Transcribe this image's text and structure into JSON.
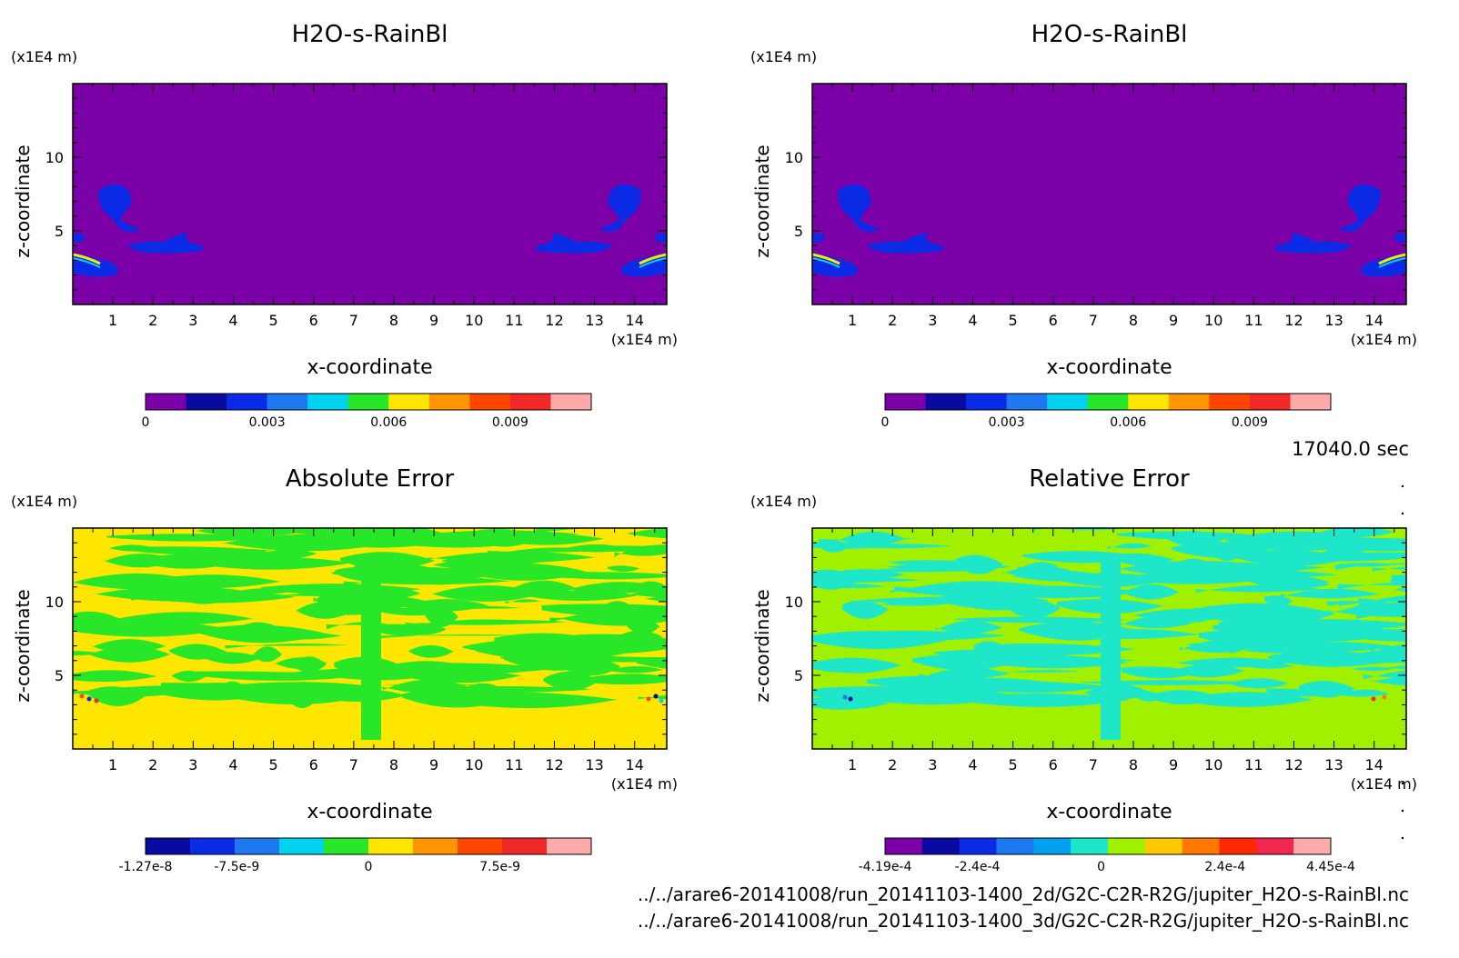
{
  "time_label": "17040.0 sec",
  "file_paths": [
    "../../arare6-20141008/run_20141103-1400_2d/G2C-C2R-R2G/jupiter_H2O-s-RainBl.nc",
    "../../arare6-20141008/run_20141103-1400_3d/G2C-C2R-R2G/jupiter_H2O-s-RainBl.nc"
  ],
  "chart_data": [
    {
      "type": "heatmap",
      "title": "H2O-s-RainBl",
      "xlabel": "x-coordinate",
      "ylabel": "z-coordinate",
      "x_unit": "(x1E4 m)",
      "y_unit": "(x1E4 m)",
      "xlim": [
        0,
        14.8
      ],
      "ylim": [
        0,
        15
      ],
      "x_ticks": [
        1,
        2,
        3,
        4,
        5,
        6,
        7,
        8,
        9,
        10,
        11,
        12,
        13,
        14
      ],
      "y_ticks": [
        5,
        10
      ],
      "background": "#7b00a8",
      "colorbar": {
        "colors": [
          "#7b00a8",
          "#0a0aa0",
          "#0a2ae6",
          "#1e78f0",
          "#00d2f0",
          "#28e628",
          "#ffe600",
          "#ff9600",
          "#ff4600",
          "#f02828",
          "#ffaaaa"
        ],
        "tick_labels": [
          "0",
          "0.003",
          "0.006",
          "0.009"
        ],
        "tick_positions": [
          0,
          0.003,
          0.006,
          0.009
        ],
        "range": [
          0,
          0.011
        ]
      }
    },
    {
      "type": "heatmap",
      "title": "H2O-s-RainBl",
      "xlabel": "x-coordinate",
      "ylabel": "z-coordinate",
      "x_unit": "(x1E4 m)",
      "y_unit": "(x1E4 m)",
      "xlim": [
        0,
        14.8
      ],
      "ylim": [
        0,
        15
      ],
      "x_ticks": [
        1,
        2,
        3,
        4,
        5,
        6,
        7,
        8,
        9,
        10,
        11,
        12,
        13,
        14
      ],
      "y_ticks": [
        5,
        10
      ],
      "background": "#7b00a8",
      "colorbar": {
        "colors": [
          "#7b00a8",
          "#0a0aa0",
          "#0a2ae6",
          "#1e78f0",
          "#00d2f0",
          "#28e628",
          "#ffe600",
          "#ff9600",
          "#ff4600",
          "#f02828",
          "#ffaaaa"
        ],
        "tick_labels": [
          "0",
          "0.003",
          "0.006",
          "0.009"
        ],
        "tick_positions": [
          0,
          0.003,
          0.006,
          0.009
        ],
        "range": [
          0,
          0.011
        ]
      }
    },
    {
      "type": "heatmap",
      "title": "Absolute Error",
      "xlabel": "x-coordinate",
      "ylabel": "z-coordinate",
      "x_unit": "(x1E4 m)",
      "y_unit": "(x1E4 m)",
      "xlim": [
        0,
        14.8
      ],
      "ylim": [
        0,
        15
      ],
      "x_ticks": [
        1,
        2,
        3,
        4,
        5,
        6,
        7,
        8,
        9,
        10,
        11,
        12,
        13,
        14
      ],
      "y_ticks": [
        5,
        10
      ],
      "background": "#ffe600",
      "pattern": "#28e628",
      "colorbar": {
        "colors": [
          "#0a0aa0",
          "#0a2ae6",
          "#1e78f0",
          "#00d2f0",
          "#28e628",
          "#ffe600",
          "#ff9600",
          "#ff4600",
          "#f02828",
          "#ffaaaa"
        ],
        "tick_labels": [
          "-1.27e-8",
          "-7.5e-9",
          "0",
          "7.5e-9"
        ],
        "tick_positions": [
          -1.27e-08,
          -7.5e-09,
          0,
          7.5e-09
        ],
        "range": [
          -1.27e-08,
          1.27e-08
        ]
      }
    },
    {
      "type": "heatmap",
      "title": "Relative Error",
      "xlabel": "x-coordinate",
      "ylabel": "z-coordinate",
      "x_unit": "(x1E4 m)",
      "y_unit": "(x1E4 m)",
      "xlim": [
        0,
        14.8
      ],
      "ylim": [
        0,
        15
      ],
      "x_ticks": [
        1,
        2,
        3,
        4,
        5,
        6,
        7,
        8,
        9,
        10,
        11,
        12,
        13,
        14
      ],
      "y_ticks": [
        5,
        10
      ],
      "background": "#a0f000",
      "pattern": "#1ee6c8",
      "colorbar": {
        "colors": [
          "#7b00a8",
          "#0a0aa0",
          "#0a2ae6",
          "#1e78f0",
          "#00a0f0",
          "#1ee6c8",
          "#a0f000",
          "#ffc800",
          "#ff7800",
          "#ff2800",
          "#f02850",
          "#ffaaaa"
        ],
        "tick_labels": [
          "-4.19e-4",
          "-2.4e-4",
          "0",
          "2.4e-4",
          "4.45e-4"
        ],
        "tick_positions": [
          -0.000419,
          -0.00024,
          0,
          0.00024,
          0.000445
        ],
        "range": [
          -0.000419,
          0.000445
        ]
      }
    }
  ]
}
